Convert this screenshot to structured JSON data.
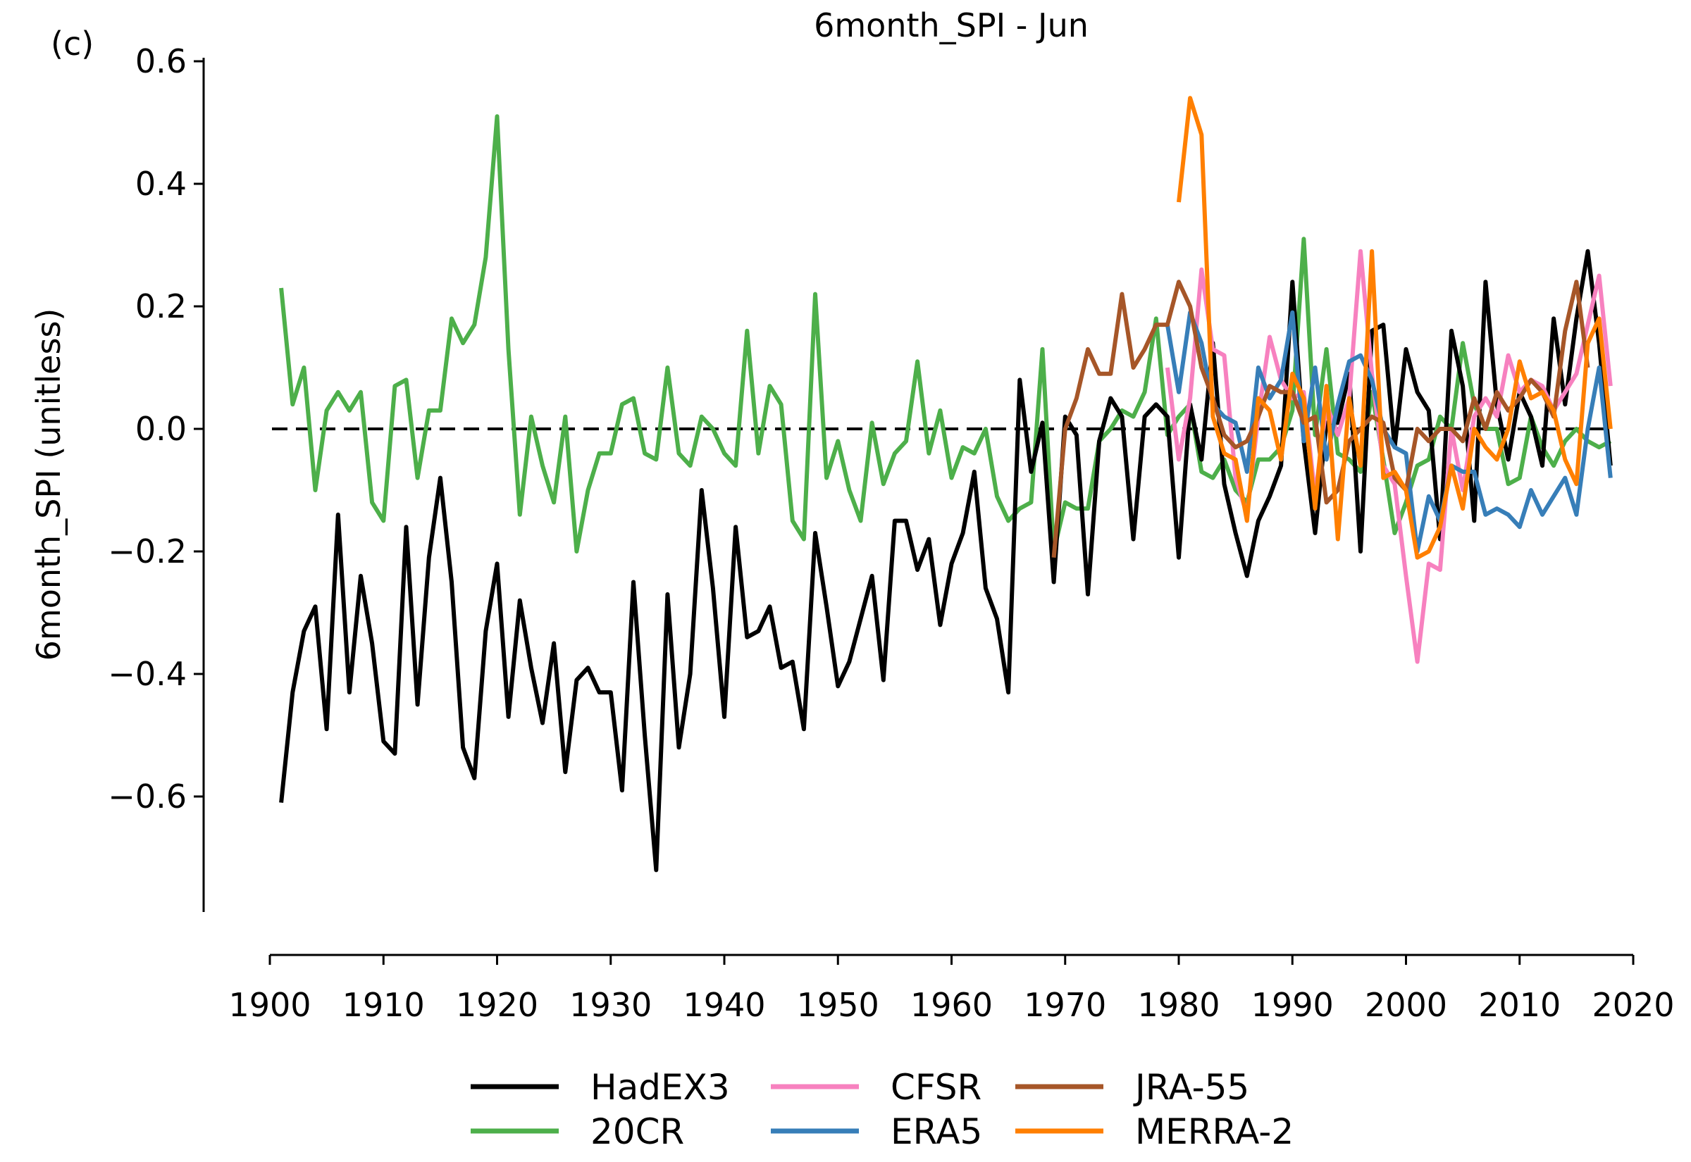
{
  "chart_data": {
    "type": "line",
    "title": "6month_SPI - Jun",
    "panel_label": "(c)",
    "xlabel": "",
    "ylabel": "6month_SPI (unitless)",
    "xlim": [
      1900,
      2020
    ],
    "ylim": [
      -0.8,
      0.6
    ],
    "x_ticks": [
      1900,
      1910,
      1920,
      1930,
      1940,
      1950,
      1960,
      1970,
      1980,
      1990,
      2000,
      2010,
      2020
    ],
    "y_ticks": [
      0.6,
      0.4,
      0.2,
      0.0,
      -0.2,
      -0.4,
      -0.6
    ],
    "y_tick_labels": [
      "0.6",
      "0.4",
      "0.2",
      "0.0",
      "−0.2",
      "−0.4",
      "−0.6"
    ],
    "reference_line": {
      "y": 0.0,
      "style": "dashed",
      "color": "#000000"
    },
    "legend_position": "bottom-center",
    "series": [
      {
        "name": "20CR",
        "color": "#4daf4a",
        "start_year": 1901,
        "values": [
          0.23,
          0.04,
          0.1,
          -0.1,
          0.03,
          0.06,
          0.03,
          0.06,
          -0.12,
          -0.15,
          0.07,
          0.08,
          -0.08,
          0.03,
          0.03,
          0.18,
          0.14,
          0.17,
          0.28,
          0.51,
          0.13,
          -0.14,
          0.02,
          -0.06,
          -0.12,
          0.02,
          -0.2,
          -0.1,
          -0.04,
          -0.04,
          0.04,
          0.05,
          -0.04,
          -0.05,
          0.1,
          -0.04,
          -0.06,
          0.02,
          0.0,
          -0.04,
          -0.06,
          0.16,
          -0.04,
          0.07,
          0.04,
          -0.15,
          -0.18,
          0.22,
          -0.08,
          -0.02,
          -0.1,
          -0.15,
          0.01,
          -0.09,
          -0.04,
          -0.02,
          0.11,
          -0.04,
          0.03,
          -0.08,
          -0.03,
          -0.04,
          0.0,
          -0.11,
          -0.15,
          -0.13,
          -0.12,
          0.13,
          -0.2,
          -0.12,
          -0.13,
          -0.13,
          -0.02,
          0.0,
          0.03,
          0.02,
          0.06,
          0.18,
          -0.01,
          0.02,
          0.04,
          -0.07,
          -0.08,
          -0.05,
          -0.1,
          -0.12,
          -0.05,
          -0.05,
          -0.03,
          0.03,
          0.31,
          -0.01,
          0.13,
          -0.04,
          -0.05,
          -0.07,
          0.06,
          -0.05,
          -0.17,
          -0.12,
          -0.06,
          -0.05,
          0.02,
          0.0,
          0.14,
          0.04,
          0.0,
          0.0,
          -0.09,
          -0.08,
          0.02,
          -0.03,
          -0.06,
          -0.02,
          0.0,
          -0.02,
          -0.03,
          -0.02
        ]
      },
      {
        "name": "HadEX3",
        "color": "#000000",
        "start_year": 1901,
        "values": [
          -0.61,
          -0.43,
          -0.33,
          -0.29,
          -0.49,
          -0.14,
          -0.43,
          -0.24,
          -0.35,
          -0.51,
          -0.53,
          -0.16,
          -0.45,
          -0.21,
          -0.08,
          -0.25,
          -0.52,
          -0.57,
          -0.33,
          -0.22,
          -0.47,
          -0.28,
          -0.39,
          -0.48,
          -0.35,
          -0.56,
          -0.41,
          -0.39,
          -0.43,
          -0.43,
          -0.59,
          -0.25,
          -0.5,
          -0.72,
          -0.27,
          -0.52,
          -0.4,
          -0.1,
          -0.26,
          -0.47,
          -0.16,
          -0.34,
          -0.33,
          -0.29,
          -0.39,
          -0.38,
          -0.49,
          -0.17,
          -0.29,
          -0.42,
          -0.38,
          -0.31,
          -0.24,
          -0.41,
          -0.15,
          -0.15,
          -0.23,
          -0.18,
          -0.32,
          -0.22,
          -0.17,
          -0.07,
          -0.26,
          -0.31,
          -0.43,
          0.08,
          -0.07,
          0.01,
          -0.25,
          0.02,
          -0.01,
          -0.27,
          -0.02,
          0.05,
          0.02,
          -0.18,
          0.02,
          0.04,
          0.02,
          -0.21,
          0.04,
          -0.05,
          0.14,
          -0.09,
          -0.17,
          -0.24,
          -0.15,
          -0.11,
          -0.06,
          0.24,
          -0.02,
          -0.17,
          0.01,
          0.01,
          0.09,
          -0.2,
          0.16,
          0.17,
          -0.03,
          0.13,
          0.06,
          0.03,
          -0.18,
          0.16,
          0.07,
          -0.15,
          0.24,
          0.04,
          -0.05,
          0.06,
          0.02,
          -0.06,
          0.18,
          0.04,
          0.18,
          0.29,
          0.14,
          -0.06
        ]
      },
      {
        "name": "CFSR",
        "color": "#f781bf",
        "start_year": 1979,
        "values": [
          0.1,
          -0.05,
          0.05,
          0.26,
          0.13,
          0.12,
          -0.08,
          -0.14,
          0.02,
          0.15,
          0.08,
          0.05,
          0.06,
          -0.11,
          0.04,
          -0.01,
          0.05,
          0.29,
          0.09,
          -0.06,
          -0.09,
          -0.24,
          -0.38,
          -0.22,
          -0.23,
          0.0,
          -0.1,
          0.02,
          0.05,
          0.02,
          0.12,
          0.06,
          0.08,
          0.07,
          0.03,
          0.06,
          0.09,
          0.17,
          0.25,
          0.07
        ]
      },
      {
        "name": "ERA5",
        "color": "#377eb8",
        "start_year": 1979,
        "values": [
          0.17,
          0.06,
          0.19,
          0.14,
          0.04,
          0.02,
          0.01,
          -0.07,
          0.1,
          0.05,
          0.08,
          0.19,
          -0.02,
          0.1,
          -0.05,
          0.04,
          0.11,
          0.12,
          0.08,
          0.0,
          -0.03,
          -0.04,
          -0.2,
          -0.11,
          -0.15,
          -0.06,
          -0.07,
          -0.07,
          -0.14,
          -0.13,
          -0.14,
          -0.16,
          -0.1,
          -0.14,
          -0.11,
          -0.08,
          -0.14,
          0.0,
          0.1,
          -0.08
        ]
      },
      {
        "name": "JRA-55",
        "color": "#a65628",
        "start_year": 1969,
        "values": [
          -0.21,
          0.0,
          0.05,
          0.13,
          0.09,
          0.09,
          0.22,
          0.1,
          0.13,
          0.17,
          0.17,
          0.24,
          0.2,
          0.1,
          0.05,
          -0.01,
          -0.03,
          -0.02,
          0.02,
          0.07,
          0.06,
          0.06,
          0.01,
          0.02,
          -0.12,
          -0.1,
          -0.02,
          0.0,
          0.02,
          0.01,
          -0.08,
          -0.1,
          0.0,
          -0.02,
          0.0,
          0.0,
          -0.02,
          0.05,
          0.0,
          0.06,
          0.03,
          0.05,
          0.08,
          0.06,
          0.02,
          0.16,
          0.24,
          0.1
        ]
      },
      {
        "name": "MERRA-2",
        "color": "#ff7f00",
        "start_year": 1980,
        "values": [
          0.37,
          0.54,
          0.48,
          0.02,
          -0.04,
          -0.05,
          -0.15,
          0.05,
          0.03,
          -0.05,
          0.09,
          0.05,
          -0.13,
          0.07,
          -0.18,
          0.05,
          -0.06,
          0.29,
          -0.08,
          -0.07,
          -0.1,
          -0.21,
          -0.2,
          -0.16,
          -0.06,
          -0.13,
          0.0,
          -0.03,
          -0.05,
          0.0,
          0.11,
          0.05,
          0.06,
          0.03,
          -0.05,
          -0.09,
          0.14,
          0.18,
          0.0
        ]
      }
    ]
  },
  "legend": {
    "items": [
      {
        "label": "HadEX3",
        "color": "#000000"
      },
      {
        "label": "20CR",
        "color": "#4daf4a"
      },
      {
        "label": "CFSR",
        "color": "#f781bf"
      },
      {
        "label": "ERA5",
        "color": "#377eb8"
      },
      {
        "label": "JRA-55",
        "color": "#a65628"
      },
      {
        "label": "MERRA-2",
        "color": "#ff7f00"
      }
    ]
  }
}
